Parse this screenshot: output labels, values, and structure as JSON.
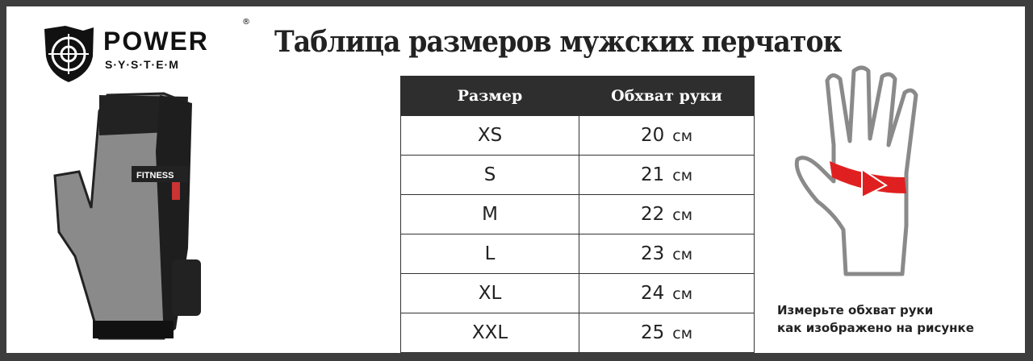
{
  "brand": {
    "name": "POWER",
    "sub": "S·Y·S·T·E·M",
    "registered": "®"
  },
  "title": "Таблица размеров мужских перчаток",
  "table": {
    "headers": [
      "Размер",
      "Обхват руки"
    ],
    "rows": [
      {
        "size": "XS",
        "value": "20",
        "unit": "см"
      },
      {
        "size": "S",
        "value": "21",
        "unit": "см"
      },
      {
        "size": "M",
        "value": "22",
        "unit": "см"
      },
      {
        "size": "L",
        "value": "23",
        "unit": "см"
      },
      {
        "size": "XL",
        "value": "24",
        "unit": "см"
      },
      {
        "size": "XXL",
        "value": "25",
        "unit": "см"
      }
    ]
  },
  "glove": {
    "label": "FITNESS"
  },
  "note": {
    "line1": "Измерьте обхват руки",
    "line2": "как изображено на рисунке"
  },
  "colors": {
    "frame": "#3d3d3d",
    "header_bg": "#2e2e2e",
    "arrow": "#e02020"
  }
}
